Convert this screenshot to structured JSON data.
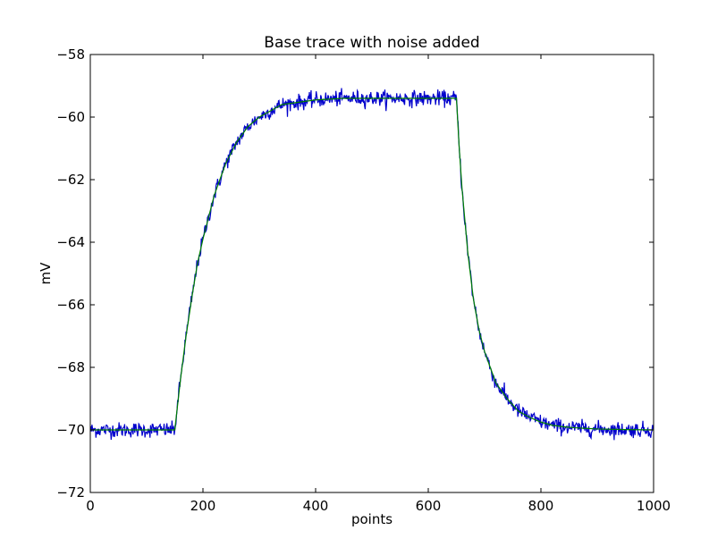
{
  "chart_data": {
    "type": "line",
    "title": "Base trace with noise added",
    "xlabel": "points",
    "ylabel": "mV",
    "xlim": [
      0,
      1000
    ],
    "ylim": [
      -72,
      -58
    ],
    "x_ticks": [
      0,
      200,
      400,
      600,
      800,
      1000
    ],
    "x_tick_labels": [
      "0",
      "200",
      "400",
      "600",
      "800",
      "1000"
    ],
    "y_ticks": [
      -72,
      -70,
      -68,
      -66,
      -64,
      -62,
      -60,
      -58
    ],
    "y_tick_labels": [
      "−72",
      "−70",
      "−68",
      "−66",
      "−64",
      "−62",
      "−60",
      "−58"
    ],
    "grid": false,
    "legend": "none",
    "series": [
      {
        "color": "#0000cc",
        "style": "noisy",
        "x": [
          0,
          50,
          100,
          150,
          160,
          170,
          180,
          190,
          200,
          220,
          240,
          260,
          280,
          300,
          320,
          340,
          360,
          380,
          400,
          450,
          500,
          550,
          600,
          650,
          655,
          660,
          670,
          680,
          690,
          700,
          710,
          720,
          740,
          760,
          780,
          800,
          820,
          840,
          860,
          880,
          900,
          950,
          1000
        ],
        "values": [
          -70.0,
          -70.0,
          -70.0,
          -70.0,
          -68.4,
          -67.0,
          -65.8,
          -64.7,
          -63.9,
          -62.5,
          -61.5,
          -60.8,
          -60.3,
          -60.0,
          -59.8,
          -59.6,
          -59.55,
          -59.5,
          -59.45,
          -59.4,
          -59.4,
          -59.4,
          -59.4,
          -59.4,
          -61.0,
          -62.3,
          -64.3,
          -65.8,
          -66.8,
          -67.5,
          -68.0,
          -68.5,
          -69.0,
          -69.4,
          -69.6,
          -69.75,
          -69.85,
          -69.9,
          -69.93,
          -69.95,
          -69.97,
          -69.99,
          -70.0
        ],
        "noise_sd": 0.12
      },
      {
        "color": "#007f00",
        "style": "smooth",
        "x": [
          0,
          50,
          100,
          150,
          160,
          170,
          180,
          190,
          200,
          220,
          240,
          260,
          280,
          300,
          320,
          340,
          360,
          380,
          400,
          450,
          500,
          550,
          600,
          650,
          655,
          660,
          670,
          680,
          690,
          700,
          710,
          720,
          740,
          760,
          780,
          800,
          820,
          840,
          860,
          880,
          900,
          950,
          1000
        ],
        "values": [
          -70.0,
          -70.0,
          -70.0,
          -70.0,
          -68.4,
          -67.0,
          -65.8,
          -64.7,
          -63.9,
          -62.5,
          -61.5,
          -60.8,
          -60.3,
          -60.0,
          -59.8,
          -59.6,
          -59.55,
          -59.5,
          -59.45,
          -59.4,
          -59.4,
          -59.4,
          -59.4,
          -59.4,
          -61.0,
          -62.3,
          -64.3,
          -65.8,
          -66.8,
          -67.5,
          -68.0,
          -68.5,
          -69.0,
          -69.4,
          -69.6,
          -69.75,
          -69.85,
          -69.9,
          -69.93,
          -69.95,
          -69.97,
          -69.99,
          -70.0
        ]
      }
    ]
  }
}
